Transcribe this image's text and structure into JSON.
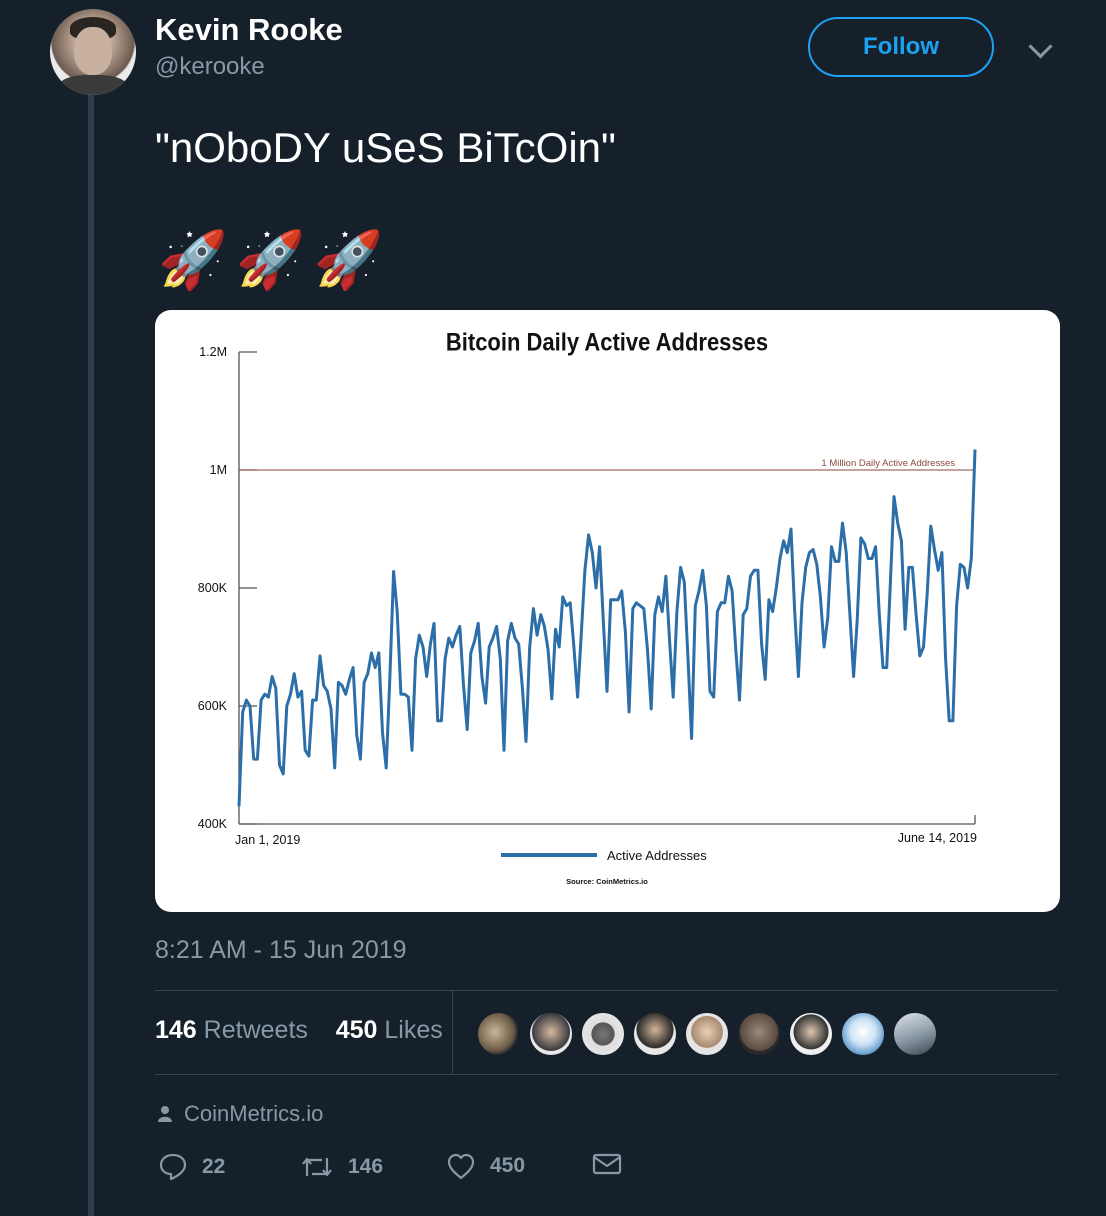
{
  "author": {
    "name": "Kevin Rooke",
    "handle": "@kerooke"
  },
  "follow_label": "Follow",
  "tweet": {
    "text": "\"nOboDY uSeS BiTcOin\"",
    "emoji": "🚀🚀🚀"
  },
  "timestamp": "8:21 AM - 15 Jun 2019",
  "stats": {
    "retweets_count": "146",
    "retweets_label": "Retweets",
    "likes_count": "450",
    "likes_label": "Likes"
  },
  "source_label": "CoinMetrics.io",
  "actions": {
    "replies": "22",
    "retweets": "146",
    "likes": "450"
  },
  "colors": {
    "background": "#15202b",
    "accent": "#1da1f2",
    "muted": "#8899a6",
    "line": "#2b6ea8"
  },
  "chart_data": {
    "type": "line",
    "title": "Bitcoin Daily Active Addresses",
    "ylim": [
      400000,
      1200000
    ],
    "ytick_labels": [
      "1.2M",
      "1M",
      "800K",
      "600K",
      "400K"
    ],
    "x_start_label": "Jan 1, 2019",
    "x_end_label": "June 14, 2019",
    "reference_line": {
      "value": 1000000,
      "label": "1 Million Daily Active Addresses"
    },
    "legend": "Active Addresses",
    "source": "Source: CoinMetrics.io",
    "series": [
      {
        "name": "Active Addresses",
        "values": [
          430000,
          590000,
          610000,
          600000,
          510000,
          510000,
          610000,
          620000,
          615000,
          650000,
          630000,
          500000,
          485000,
          600000,
          620000,
          655000,
          615000,
          625000,
          525000,
          515000,
          610000,
          610000,
          685000,
          635000,
          625000,
          595000,
          495000,
          640000,
          635000,
          620000,
          645000,
          665000,
          550000,
          510000,
          640000,
          655000,
          690000,
          665000,
          690000,
          555000,
          495000,
          650000,
          828000,
          760000,
          620000,
          620000,
          615000,
          525000,
          680000,
          720000,
          700000,
          650000,
          705000,
          740000,
          575000,
          575000,
          680000,
          715000,
          700000,
          720000,
          735000,
          635000,
          560000,
          690000,
          710000,
          740000,
          650000,
          605000,
          700000,
          715000,
          735000,
          680000,
          525000,
          710000,
          740000,
          715000,
          705000,
          630000,
          540000,
          700000,
          765000,
          720000,
          755000,
          735000,
          695000,
          612000,
          730000,
          700000,
          785000,
          770000,
          775000,
          700000,
          615000,
          720000,
          830000,
          890000,
          860000,
          800000,
          870000,
          745000,
          625000,
          780000,
          780000,
          780000,
          795000,
          725000,
          590000,
          765000,
          775000,
          770000,
          765000,
          695000,
          595000,
          755000,
          785000,
          760000,
          820000,
          710000,
          615000,
          760000,
          835000,
          810000,
          680000,
          545000,
          770000,
          795000,
          830000,
          770000,
          625000,
          615000,
          760000,
          775000,
          775000,
          820000,
          795000,
          695000,
          610000,
          755000,
          765000,
          820000,
          830000,
          830000,
          705000,
          645000,
          780000,
          760000,
          800000,
          850000,
          880000,
          860000,
          900000,
          760000,
          650000,
          775000,
          835000,
          860000,
          865000,
          840000,
          785000,
          700000,
          750000,
          870000,
          845000,
          845000,
          910000,
          860000,
          755000,
          650000,
          745000,
          885000,
          875000,
          850000,
          850000,
          870000,
          755000,
          665000,
          665000,
          810000,
          955000,
          910000,
          880000,
          730000,
          835000,
          835000,
          755000,
          685000,
          700000,
          790000,
          905000,
          865000,
          830000,
          860000,
          680000,
          575000,
          575000,
          770000,
          840000,
          835000,
          800000,
          850000,
          1035000
        ]
      }
    ]
  }
}
